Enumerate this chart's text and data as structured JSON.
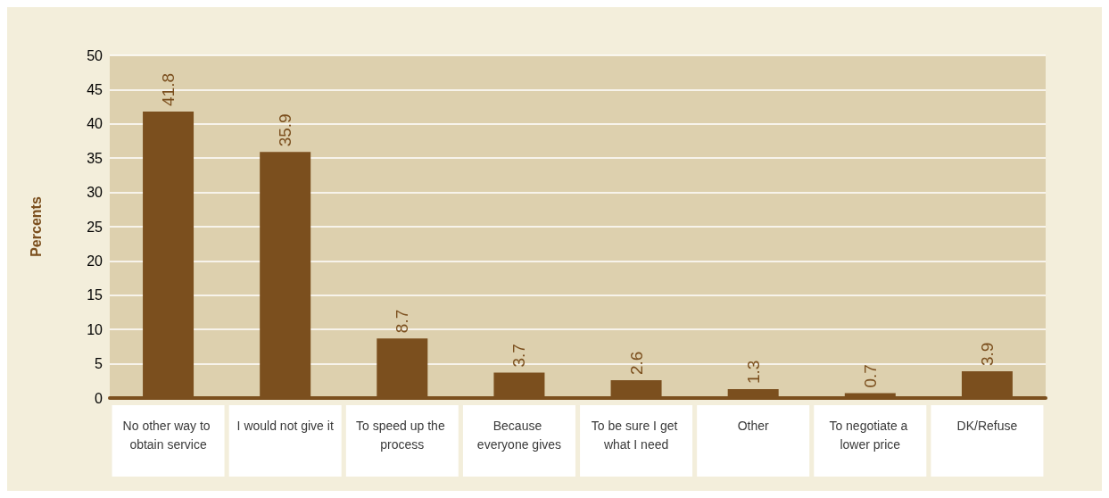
{
  "chart_data": {
    "type": "bar",
    "ylabel": "Percents",
    "categories": [
      "No other way to obtain service",
      "I would not give it",
      "To speed up the process",
      "Because everyone gives",
      "To be sure I get what I need",
      "Other",
      "To negotiate a lower price",
      "DK/Refuse"
    ],
    "values": [
      41.8,
      35.9,
      8.7,
      3.7,
      2.6,
      1.3,
      0.7,
      3.9
    ],
    "color": "#7b4f1e",
    "ylim": [
      0,
      50
    ],
    "yticks": [
      0,
      5,
      10,
      15,
      20,
      25,
      30,
      35,
      40,
      45,
      50
    ],
    "grid": "y",
    "data_labels": true
  }
}
